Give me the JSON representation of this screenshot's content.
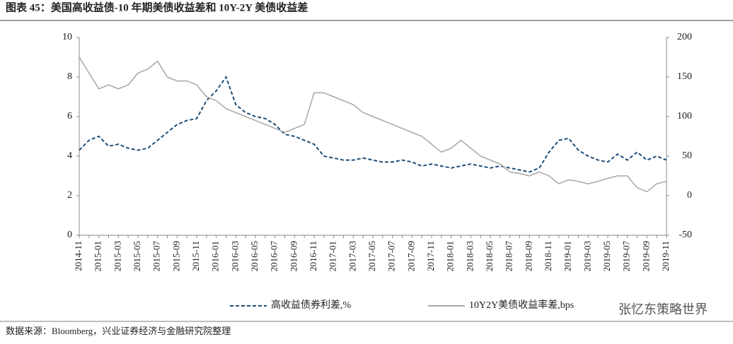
{
  "title": "图表 45：美国高收益债-10 年期美债收益差和 10Y-2Y 美债收益差",
  "source": "数据来源：Bloomberg，兴业证券经济与金融研究院整理",
  "watermark": "张忆东策略世界",
  "chart_data": {
    "type": "line",
    "categories": [
      "2014-11",
      null,
      "2015-01",
      null,
      "2015-03",
      null,
      "2015-05",
      null,
      "2015-07",
      null,
      "2015-09",
      null,
      "2015-11",
      null,
      "2016-01",
      null,
      "2016-03",
      null,
      "2016-05",
      null,
      "2016-07",
      null,
      "2016-09",
      null,
      "2016-11",
      null,
      "2017-01",
      null,
      "2017-03",
      null,
      "2017-05",
      null,
      "2017-07",
      null,
      "2017-09",
      null,
      "2017-11",
      null,
      "2018-01",
      null,
      "2018-03",
      null,
      "2018-05",
      null,
      "2018-07",
      null,
      "2018-09",
      null,
      "2018-11",
      null,
      "2019-01",
      null,
      "2019-03",
      null,
      "2019-05",
      null,
      "2019-07",
      null,
      "2019-09",
      null,
      "2019-11"
    ],
    "series": [
      {
        "name": "高收益债券利差,%",
        "color": "#1f4e79",
        "style": "dashed",
        "axis": "y",
        "values": [
          4.3,
          4.8,
          5.0,
          4.5,
          4.6,
          4.4,
          4.3,
          4.4,
          4.8,
          5.2,
          5.6,
          5.8,
          5.9,
          6.8,
          7.3,
          8.0,
          6.6,
          6.2,
          6.0,
          5.9,
          5.6,
          5.1,
          5.0,
          4.8,
          4.6,
          4.0,
          3.9,
          3.8,
          3.8,
          3.9,
          3.8,
          3.7,
          3.7,
          3.8,
          3.7,
          3.5,
          3.6,
          3.5,
          3.4,
          3.5,
          3.6,
          3.5,
          3.4,
          3.5,
          3.4,
          3.3,
          3.2,
          3.4,
          4.2,
          4.8,
          4.9,
          4.3,
          4.0,
          3.8,
          3.7,
          4.1,
          3.8,
          4.2,
          3.8,
          4.0,
          3.8
        ]
      },
      {
        "name": "10Y2Y美债收益率差,bps",
        "color": "#a6a6a6",
        "style": "solid",
        "axis": "y2",
        "values": [
          175,
          155,
          135,
          140,
          135,
          140,
          155,
          160,
          170,
          150,
          145,
          145,
          140,
          125,
          120,
          110,
          105,
          100,
          95,
          90,
          85,
          80,
          85,
          90,
          130,
          130,
          125,
          120,
          115,
          105,
          100,
          95,
          90,
          85,
          80,
          75,
          65,
          55,
          60,
          70,
          60,
          50,
          45,
          40,
          30,
          28,
          25,
          30,
          25,
          15,
          20,
          18,
          15,
          18,
          22,
          25,
          25,
          10,
          5,
          15,
          18
        ]
      }
    ],
    "ylim": [
      0,
      10
    ],
    "yticks": [
      0,
      2,
      4,
      6,
      8,
      10
    ],
    "y2lim": [
      -50,
      200
    ],
    "y2ticks": [
      -50,
      0,
      50,
      100,
      150,
      200
    ],
    "grid": false
  }
}
